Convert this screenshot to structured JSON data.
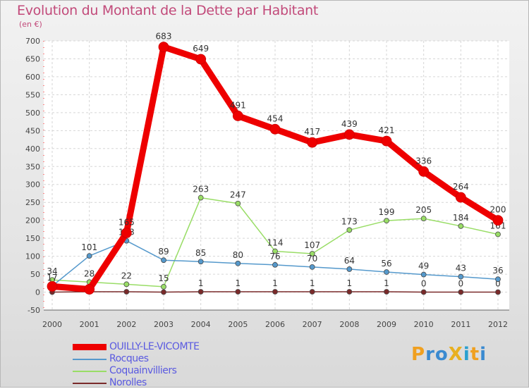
{
  "chart_data": {
    "type": "line",
    "title": "Evolution du Montant de la Dette par Habitant",
    "subtitle": "(en €)",
    "categories": [
      "2000",
      "2001",
      "2002",
      "2003",
      "2004",
      "2005",
      "2006",
      "2007",
      "2008",
      "2009",
      "2010",
      "2011",
      "2012"
    ],
    "ylim": [
      -50,
      700
    ],
    "yticks": [
      -50,
      0,
      50,
      100,
      150,
      200,
      250,
      300,
      350,
      400,
      450,
      500,
      550,
      600,
      650,
      700
    ],
    "ytick_labels": [
      "-50",
      "0",
      "50",
      "100",
      "150",
      "200",
      "250",
      "300",
      "350",
      "400",
      "450",
      "500",
      "550",
      "600",
      "650",
      "700"
    ],
    "grid": true,
    "legend_position": "bottom-left",
    "series": [
      {
        "name": "Norolles",
        "color": "#7a2a2a",
        "width": 1.5,
        "values": [
          0,
          1,
          1,
          0,
          1,
          1,
          1,
          1,
          1,
          1,
          0,
          0,
          0
        ],
        "labels": [
          "",
          "",
          "",
          "",
          "1",
          "1",
          "1",
          "1",
          "1",
          "1",
          "0",
          "0",
          "0"
        ]
      },
      {
        "name": "Coquainvilliers",
        "color": "#99dd66",
        "width": 1.5,
        "values": [
          34,
          28,
          22,
          15,
          263,
          247,
          114,
          107,
          173,
          199,
          205,
          184,
          161
        ],
        "labels": [
          "34",
          "28",
          "22",
          "15",
          "263",
          "247",
          "114",
          "107",
          "173",
          "199",
          "205",
          "184",
          "161"
        ]
      },
      {
        "name": "Rocques",
        "color": "#5599cc",
        "width": 1.5,
        "values": [
          17,
          101,
          143,
          89,
          85,
          80,
          76,
          70,
          64,
          56,
          49,
          43,
          36
        ],
        "labels": [
          "17",
          "101",
          "143",
          "89",
          "85",
          "80",
          "76",
          "70",
          "64",
          "56",
          "49",
          "43",
          "36"
        ]
      },
      {
        "name": "OUILLY-LE-VICOMTE",
        "color": "#ee0000",
        "width": 9,
        "values": [
          16,
          8,
          165,
          683,
          649,
          491,
          454,
          417,
          439,
          421,
          336,
          264,
          200
        ],
        "labels": [
          "",
          "",
          "165",
          "683",
          "649",
          "491",
          "454",
          "417",
          "439",
          "421",
          "336",
          "264",
          "200"
        ]
      }
    ]
  },
  "legend": {
    "items": [
      {
        "label": "OUILLY-LE-VICOMTE",
        "color": "#ee0000"
      },
      {
        "label": "Rocques",
        "color": "#5599cc"
      },
      {
        "label": "Coquainvilliers",
        "color": "#99dd66"
      },
      {
        "label": "Norolles",
        "color": "#7a2a2a"
      }
    ]
  },
  "logo": {
    "text": "ProXiti"
  }
}
